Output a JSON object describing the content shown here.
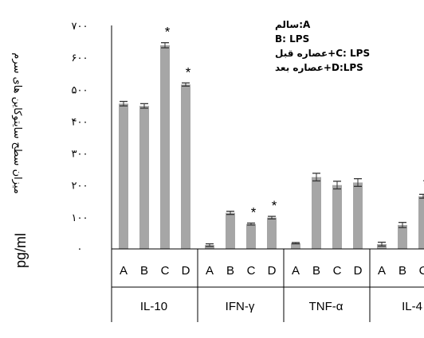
{
  "chart_data": {
    "type": "bar",
    "ylim": [
      0,
      700
    ],
    "yticks": [
      0,
      100,
      200,
      300,
      400,
      500,
      600,
      700
    ],
    "ytick_labels": [
      "·",
      "۱۰۰",
      "۲۰۰",
      "۳۰۰",
      "۴۰۰",
      "۵۰۰",
      "۶۰۰",
      "۷۰۰"
    ],
    "ylabel_fa": "میزان سطح سایتوکاین های سرم",
    "ylabel_unit": "pg/ml",
    "bar_color": "#a6a6a6",
    "groups": [
      {
        "name": "IL-10",
        "categories": [
          "A",
          "B",
          "C",
          "D"
        ],
        "values": [
          455,
          448,
          638,
          515
        ],
        "errors": [
          7,
          7,
          8,
          5
        ],
        "significant": [
          false,
          false,
          true,
          true
        ]
      },
      {
        "name": "IFN-γ",
        "categories": [
          "A",
          "B",
          "C",
          "D"
        ],
        "values": [
          12,
          113,
          78,
          98
        ],
        "errors": [
          4,
          5,
          3,
          4
        ],
        "significant": [
          false,
          false,
          true,
          true
        ]
      },
      {
        "name": "TNF-α",
        "categories": [
          "A",
          "B",
          "C",
          "D"
        ],
        "values": [
          18,
          225,
          200,
          208
        ],
        "errors": [
          2,
          12,
          12,
          12
        ],
        "significant": [
          false,
          false,
          false,
          false
        ]
      },
      {
        "name": "IL-4",
        "categories": [
          "A",
          "B",
          "C"
        ],
        "values": [
          15,
          75,
          165
        ],
        "errors": [
          6,
          8,
          6
        ],
        "significant": [
          false,
          false,
          true
        ]
      }
    ],
    "significance_marker": "*",
    "legend": [
      "سالم:A",
      "B: LPS",
      "عصاره قبل+C: LPS",
      "عصاره بعد+D:LPS"
    ]
  }
}
